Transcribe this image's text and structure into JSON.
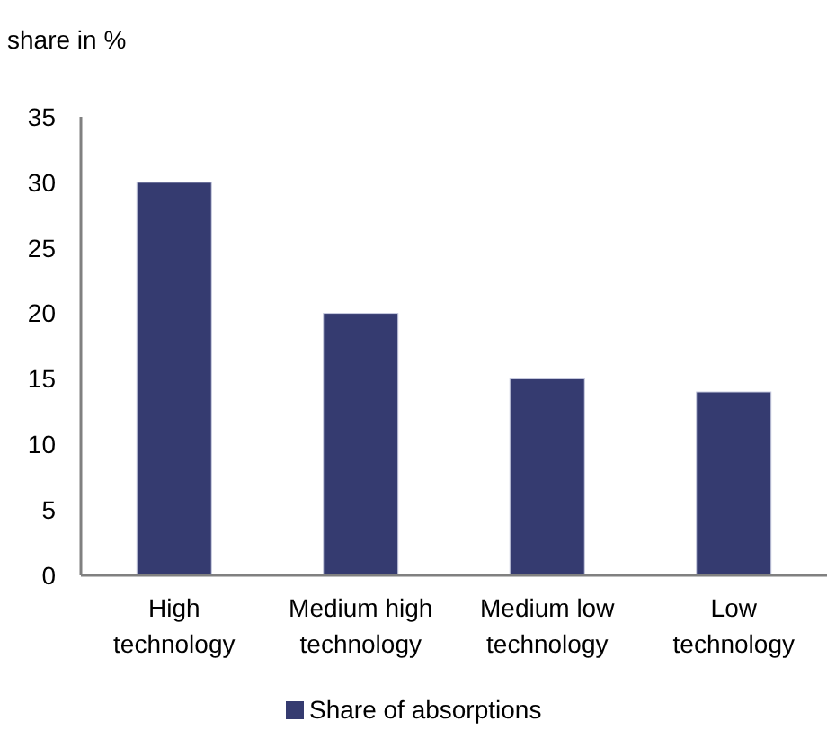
{
  "chart_data": {
    "type": "bar",
    "ylabel": "share in %",
    "categories": [
      "High technology",
      "Medium high technology",
      "Medium low technology",
      "Low technology"
    ],
    "series": [
      {
        "name": "Share of absorptions",
        "color": "#353b70",
        "values": [
          30,
          20,
          15,
          14
        ]
      }
    ],
    "ylim": [
      0,
      35
    ],
    "yticks": [
      0,
      5,
      10,
      15,
      20,
      25,
      30,
      35
    ],
    "grid": false,
    "legend": "bottom"
  }
}
